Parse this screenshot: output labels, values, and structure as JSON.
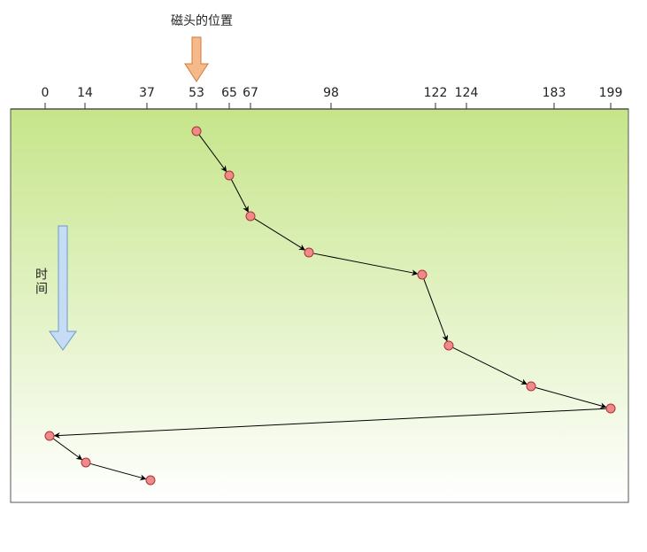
{
  "title": "磁头的位置",
  "time_label": "时间",
  "ticks": [
    0,
    14,
    37,
    53,
    65,
    67,
    98,
    122,
    124,
    183,
    199
  ]
}
